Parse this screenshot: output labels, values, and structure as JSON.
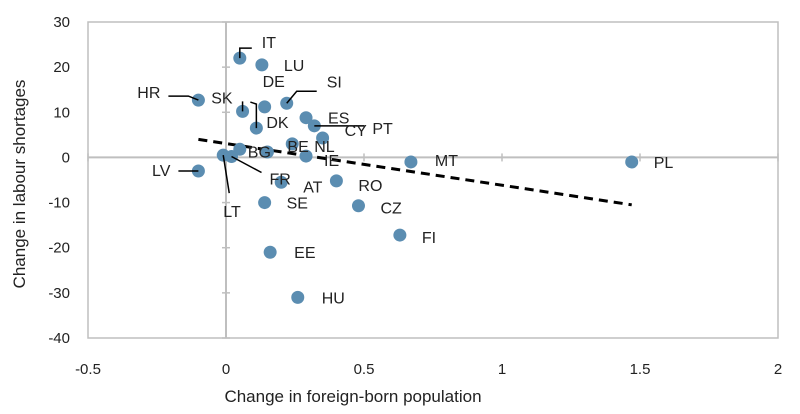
{
  "chart_data": {
    "type": "scatter",
    "xlabel": "Change in foreign-born population",
    "ylabel": "Change in labour shortages",
    "xlim": [
      -0.5,
      2
    ],
    "ylim": [
      -40,
      30
    ],
    "x_ticks": [
      "-0.5",
      "0",
      "0.5",
      "1",
      "1.5",
      "2"
    ],
    "y_ticks": [
      "30",
      "20",
      "10",
      "0",
      "-10",
      "-20",
      "-30",
      "-40"
    ],
    "x_tick_values": [
      -0.5,
      0,
      0.5,
      1,
      1.5,
      2
    ],
    "y_tick_values": [
      30,
      20,
      10,
      0,
      -10,
      -20,
      -30,
      -40
    ],
    "grid": false,
    "point_color": "#5b8db1",
    "trendline": {
      "style": "dashed",
      "color": "#000000",
      "x": [
        -0.1,
        1.47
      ],
      "y": [
        4.0,
        -10.5
      ]
    },
    "points": [
      {
        "label": "IT",
        "x": 0.05,
        "y": 22
      },
      {
        "label": "LU",
        "x": 0.13,
        "y": 20.5
      },
      {
        "label": "HR",
        "x": -0.1,
        "y": 12.7
      },
      {
        "label": "SK",
        "x": 0.06,
        "y": 10.2
      },
      {
        "label": "DE",
        "x": 0.14,
        "y": 11.2
      },
      {
        "label": "SI",
        "x": 0.22,
        "y": 12.0
      },
      {
        "label": "DK",
        "x": 0.11,
        "y": 6.5
      },
      {
        "label": "ES",
        "x": 0.29,
        "y": 8.8
      },
      {
        "label": "PT",
        "x": 0.32,
        "y": 7.0
      },
      {
        "label": "CY",
        "x": 0.35,
        "y": 4.3
      },
      {
        "label": "NL",
        "x": 0.24,
        "y": 3.0
      },
      {
        "label": "BG",
        "x": 0.05,
        "y": 1.8
      },
      {
        "label": "BE",
        "x": 0.15,
        "y": 1.2
      },
      {
        "label": "IE",
        "x": 0.29,
        "y": 0.3
      },
      {
        "label": "LV",
        "x": -0.1,
        "y": -3.0
      },
      {
        "label": "LT",
        "x": -0.01,
        "y": 0.5
      },
      {
        "label": "FR",
        "x": 0.02,
        "y": 0.2
      },
      {
        "label": "AT",
        "x": 0.2,
        "y": -5.5
      },
      {
        "label": "RO",
        "x": 0.4,
        "y": -5.2
      },
      {
        "label": "SE",
        "x": 0.14,
        "y": -10.0
      },
      {
        "label": "CZ",
        "x": 0.48,
        "y": -10.7
      },
      {
        "label": "FI",
        "x": 0.63,
        "y": -17.2
      },
      {
        "label": "EE",
        "x": 0.16,
        "y": -21.0
      },
      {
        "label": "HU",
        "x": 0.26,
        "y": -31.0
      },
      {
        "label": "MT",
        "x": 0.67,
        "y": -1.0
      },
      {
        "label": "PL",
        "x": 1.47,
        "y": -1.0
      }
    ]
  }
}
